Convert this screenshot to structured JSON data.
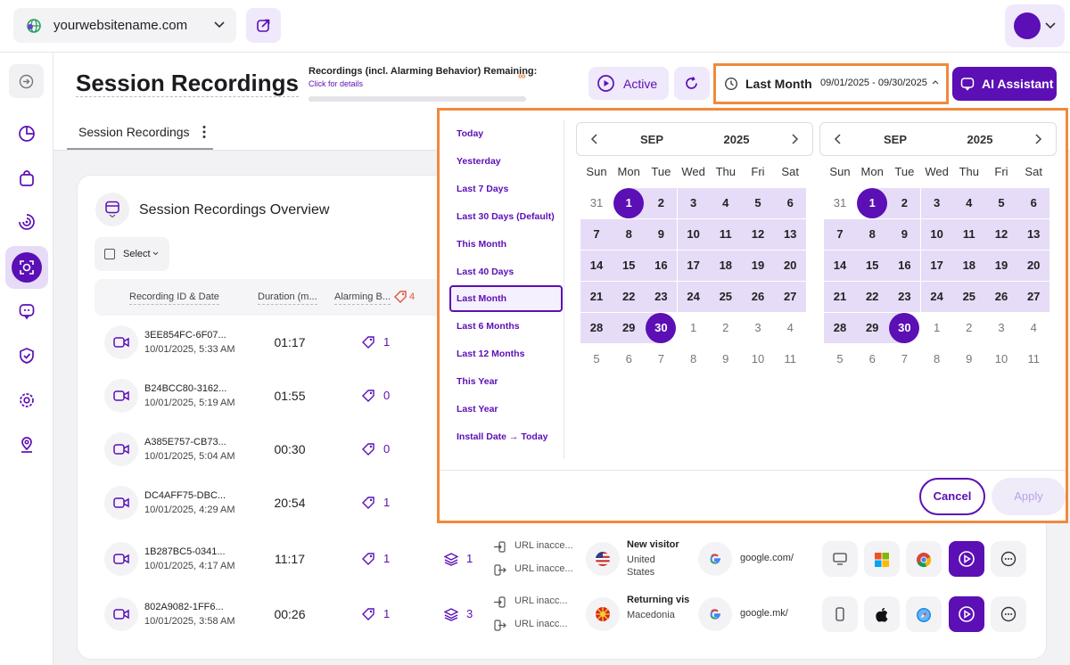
{
  "header": {
    "site": "yourwebsitename.com"
  },
  "toolbar": {
    "title": "Session Recordings",
    "quota_label": "Recordings (incl. Alarming Behavior) Remaining:",
    "quota_value": "∞",
    "quota_link": "Click for details",
    "status": "Active",
    "date_preset": "Last Month",
    "date_range": "09/01/2025 - 09/30/2025",
    "assistant": "AI Assistant"
  },
  "tabs": [
    "Session Recordings"
  ],
  "overview": {
    "title": "Session Recordings Overview",
    "select": "Select",
    "columns": [
      "Recording ID & Date",
      "Duration (m...",
      "Alarming B..."
    ],
    "alarm_total": 4,
    "rows": [
      {
        "id": "3EE854FC-6F07...",
        "date": "10/01/2025, 5:33 AM",
        "duration": "01:17",
        "alarms": 1
      },
      {
        "id": "B24BCC80-3162...",
        "date": "10/01/2025, 5:19 AM",
        "duration": "01:55",
        "alarms": 0
      },
      {
        "id": "A385E757-CB73...",
        "date": "10/01/2025, 5:04 AM",
        "duration": "00:30",
        "alarms": 0
      },
      {
        "id": "DC4AFF75-DBC...",
        "date": "10/01/2025, 4:29 AM",
        "duration": "20:54",
        "alarms": 1
      },
      {
        "id": "1B287BC5-0341...",
        "date": "10/01/2025, 4:17 AM",
        "duration": "11:17",
        "alarms": 1,
        "pages": 1,
        "entry": "URL inacce...",
        "exit": "URL inacce...",
        "visitor": "New visitor",
        "country": "United States",
        "referrer": "google.com/",
        "flag": "us",
        "device": "desktop",
        "os": "windows",
        "browser": "chrome"
      },
      {
        "id": "802A9082-1FF6...",
        "date": "10/01/2025, 3:58 AM",
        "duration": "00:26",
        "alarms": 1,
        "pages": 3,
        "entry": "URL inacc...",
        "exit": "URL inacc...",
        "visitor": "Returning vis",
        "country": "Macedonia",
        "referrer": "google.mk/",
        "flag": "mk",
        "device": "mobile",
        "os": "apple",
        "browser": "safari"
      }
    ]
  },
  "date_picker": {
    "presets": [
      "Today",
      "Yesterday",
      "Last 7 Days",
      "Last 30 Days (Default)",
      "This Month",
      "Last 40 Days",
      "Last Month",
      "Last 6 Months",
      "Last 12 Months",
      "This Year",
      "Last Year",
      "Install Date → Today"
    ],
    "selected_preset": 6,
    "calendars": [
      {
        "month": "SEP",
        "year": "2025",
        "weekdays": [
          "Sun",
          "Mon",
          "Tue",
          "Wed",
          "Thu",
          "Fri",
          "Sat"
        ],
        "weeks": [
          [
            31,
            1,
            2,
            3,
            4,
            5,
            6
          ],
          [
            7,
            8,
            9,
            10,
            11,
            12,
            13
          ],
          [
            14,
            15,
            16,
            17,
            18,
            19,
            20
          ],
          [
            21,
            22,
            23,
            24,
            25,
            26,
            27
          ],
          [
            28,
            29,
            30,
            1,
            2,
            3,
            4
          ],
          [
            5,
            6,
            7,
            8,
            9,
            10,
            11
          ]
        ]
      },
      {
        "month": "SEP",
        "year": "2025",
        "weekdays": [
          "Sun",
          "Mon",
          "Tue",
          "Wed",
          "Thu",
          "Fri",
          "Sat"
        ],
        "weeks": [
          [
            31,
            1,
            2,
            3,
            4,
            5,
            6
          ],
          [
            7,
            8,
            9,
            10,
            11,
            12,
            13
          ],
          [
            14,
            15,
            16,
            17,
            18,
            19,
            20
          ],
          [
            21,
            22,
            23,
            24,
            25,
            26,
            27
          ],
          [
            28,
            29,
            30,
            1,
            2,
            3,
            4
          ],
          [
            5,
            6,
            7,
            8,
            9,
            10,
            11
          ]
        ]
      }
    ],
    "cancel": "Cancel",
    "apply": "Apply"
  }
}
